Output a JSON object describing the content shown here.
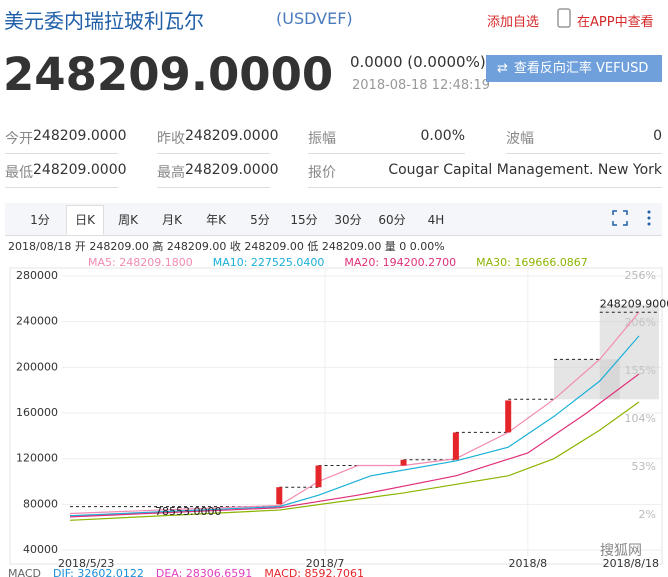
{
  "header": {
    "title": "美元委内瑞拉玻利瓦尔",
    "symbol": "(USDVEF)",
    "add_watchlist": "添加自选",
    "view_in_app": "在APP中查看"
  },
  "quote": {
    "price": "248209.0000",
    "change": "0.0000 (0.0000%)",
    "time": "2018-08-18 12:48:19",
    "reverse_button": "查看反向汇率 VEFUSD"
  },
  "stats": [
    [
      {
        "label": "今开",
        "value": "248209.0000"
      },
      {
        "label": "昨收",
        "value": "248209.0000"
      },
      {
        "label": "振幅",
        "value": "0.00%"
      },
      {
        "label": "波幅",
        "value": "0"
      }
    ],
    [
      {
        "label": "最低",
        "value": "248209.0000"
      },
      {
        "label": "最高",
        "value": "248209.0000"
      },
      {
        "label": "报价",
        "value": "Cougar Capital Management. New York"
      }
    ]
  ],
  "tabs": [
    "1分",
    "日K",
    "周K",
    "月K",
    "年K",
    "5分",
    "15分",
    "30分",
    "60分",
    "4H"
  ],
  "chart_data": {
    "type": "candlestick",
    "info_line": "2018/08/18 开 248209.00 高 248209.00 收 248209.00 低 248209.00 量 0 0.00%",
    "series": [
      {
        "name": "MA5: 248209.1800",
        "color": "#f28bb3",
        "x": [
          "2018/5/23",
          "2018/6/24",
          "2018/6/30",
          "2018/7/6",
          "2018/7/13",
          "2018/7/21",
          "2018/7/29",
          "2018/8/5",
          "2018/8/12",
          "2018/8/18"
        ],
        "values": [
          72000,
          79000,
          100000,
          114000,
          114000,
          120000,
          143000,
          172000,
          207000,
          248209.18
        ]
      },
      {
        "name": "MA10: 227525.0400",
        "color": "#1ab0d8",
        "x": [
          "2018/5/23",
          "2018/6/24",
          "2018/6/30",
          "2018/7/8",
          "2018/7/21",
          "2018/7/29",
          "2018/8/5",
          "2018/8/12",
          "2018/8/18"
        ],
        "values": [
          70000,
          78000,
          88000,
          105000,
          118000,
          130000,
          157000,
          188000,
          227525.04
        ]
      },
      {
        "name": "MA20: 194200.2700",
        "color": "#e0307a",
        "x": [
          "2018/5/23",
          "2018/6/24",
          "2018/7/6",
          "2018/7/21",
          "2018/8/1",
          "2018/8/10",
          "2018/8/18"
        ],
        "values": [
          69000,
          77000,
          88000,
          105000,
          125000,
          160000,
          194200.27
        ]
      },
      {
        "name": "MA30: 169666.0867",
        "color": "#8cb400",
        "x": [
          "2018/5/23",
          "2018/6/24",
          "2018/7/13",
          "2018/7/29",
          "2018/8/5",
          "2018/8/12",
          "2018/8/18"
        ],
        "values": [
          66000,
          75000,
          90000,
          105000,
          120000,
          145000,
          169666.0867
        ]
      }
    ],
    "candles": [
      {
        "date": "2018/6/24",
        "open": 80000,
        "close": 95000
      },
      {
        "date": "2018/6/30",
        "open": 95000,
        "close": 114000
      },
      {
        "date": "2018/7/13",
        "open": 114000,
        "close": 119000
      },
      {
        "date": "2018/7/21",
        "open": 119000,
        "close": 143000
      },
      {
        "date": "2018/7/29",
        "open": 143000,
        "close": 171000
      }
    ],
    "candle_color": "#e4252a",
    "levels": [
      {
        "start": "2018/5/23",
        "end": "2018/6/24",
        "value": 78000
      },
      {
        "start": "2018/6/24",
        "end": "2018/6/30",
        "value": 95000
      },
      {
        "start": "2018/6/30",
        "end": "2018/7/13",
        "value": 114000
      },
      {
        "start": "2018/7/13",
        "end": "2018/7/21",
        "value": 119000
      },
      {
        "start": "2018/7/21",
        "end": "2018/7/29",
        "value": 143000
      },
      {
        "start": "2018/7/29",
        "end": "2018/8/5",
        "value": 172000
      },
      {
        "start": "2018/8/5",
        "end": "2018/8/12",
        "value": 207000
      },
      {
        "start": "2018/8/12",
        "end": "2018/8/18",
        "value": 248209
      }
    ],
    "shaded_ranges": [
      {
        "start": "2018/8/5",
        "end": "2018/8/12",
        "low": 172000,
        "high": 207000
      },
      {
        "start": "2018/8/12",
        "end": "2018/8/18",
        "low": 172000,
        "high": 255000
      }
    ],
    "annotations": [
      {
        "x": "2018/6/5",
        "y": 78553,
        "label": "78553.0000"
      },
      {
        "x": "2018/8/12",
        "y": 248209.9,
        "label": "248209.9000"
      }
    ],
    "xlim": [
      "2018/5/23",
      "2018/8/18"
    ],
    "xticks": [
      "2018/5/23",
      "2018/7",
      "2018/8",
      "2018/8/18"
    ],
    "ylim": [
      40000,
      280000
    ],
    "yticks": [
      40000,
      80000,
      120000,
      160000,
      200000,
      240000,
      280000
    ],
    "y2lim": [
      -35,
      256
    ],
    "y2ticks": [
      {
        "value": 2,
        "label": "2%"
      },
      {
        "value": 53,
        "label": "53%"
      },
      {
        "value": 104,
        "label": "104%"
      },
      {
        "value": 155,
        "label": "155%"
      },
      {
        "value": 206,
        "label": "206%"
      },
      {
        "value": 256,
        "label": "256%"
      }
    ],
    "grid": true,
    "macd": [
      {
        "text": "MACD",
        "color": "#666"
      },
      {
        "text": "DIF: 32602.0122",
        "color": "#1a8fd8"
      },
      {
        "text": "DEA: 28306.6591",
        "color": "#e040c0"
      },
      {
        "text": "MACD: 8592.7061",
        "color": "#e4252a"
      }
    ],
    "watermark": "搜狐网"
  }
}
